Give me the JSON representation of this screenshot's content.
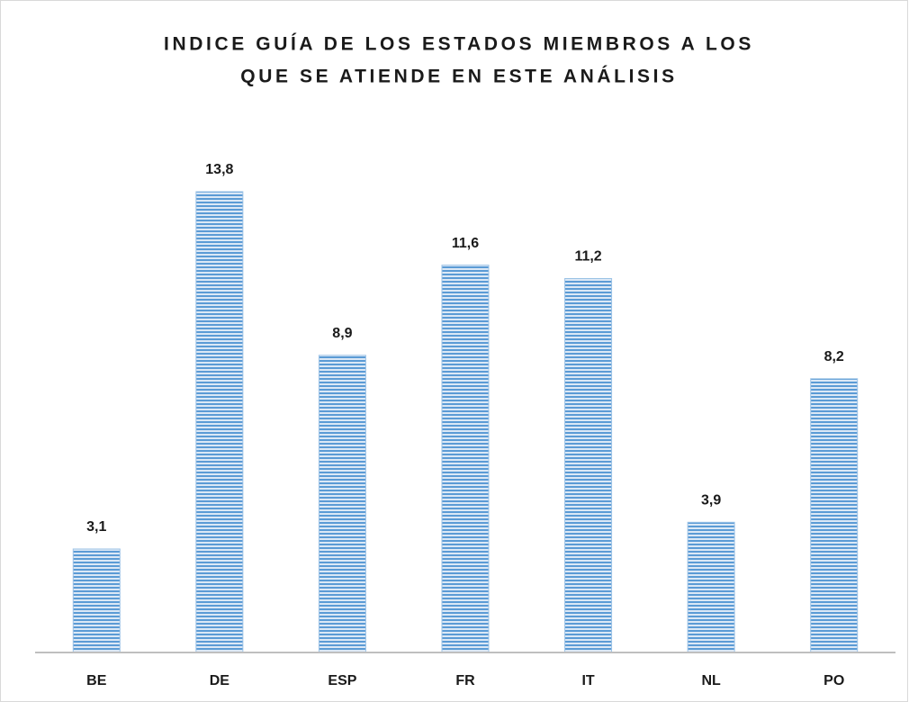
{
  "chart_data": {
    "type": "bar",
    "title": [
      "INDICE GUÍA DE LOS ESTADOS MIEMBROS A LOS",
      "QUE SE ATIENDE EN ESTE ANÁLISIS"
    ],
    "categories": [
      "BE",
      "DE",
      "ESP",
      "FR",
      "IT",
      "NL",
      "PO"
    ],
    "values": [
      3.1,
      13.8,
      8.9,
      11.6,
      11.2,
      3.9,
      8.2
    ],
    "value_labels": [
      "3,1",
      "13,8",
      "8,9",
      "11,6",
      "11,2",
      "3,9",
      "8,2"
    ],
    "color": "#5b9bd5"
  }
}
